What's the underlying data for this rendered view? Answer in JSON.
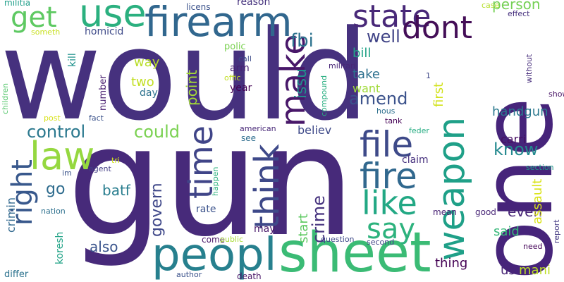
{
  "cloud": {
    "w01": {
      "text": "would",
      "color": "#46317e"
    },
    "w02": {
      "text": "gun",
      "color": "#472a7a"
    },
    "w03": {
      "text": "one",
      "color": "#46247a"
    },
    "w04": {
      "text": "sheet",
      "color": "#3bbb75"
    },
    "w05": {
      "text": "peopl",
      "color": "#27808e"
    },
    "w06": {
      "text": "firearm",
      "color": "#31678e"
    },
    "w07": {
      "text": "use",
      "color": "#2bb07f"
    },
    "w08": {
      "text": "state",
      "color": "#482878"
    },
    "w09": {
      "text": "dont",
      "color": "#440e57"
    },
    "w10": {
      "text": "get",
      "color": "#5ec962"
    },
    "w11": {
      "text": "law",
      "color": "#95d840"
    },
    "w12": {
      "text": "file",
      "color": "#3e4a89"
    },
    "w13": {
      "text": "fire",
      "color": "#31688e"
    },
    "w14": {
      "text": "weapon",
      "color": "#1fa088"
    },
    "w15": {
      "text": "like",
      "color": "#22a884"
    },
    "w16": {
      "text": "say",
      "color": "#2db27d"
    },
    "w17": {
      "text": "make",
      "color": "#481769"
    },
    "w18": {
      "text": "think",
      "color": "#3e4989"
    },
    "w19": {
      "text": "time",
      "color": "#404588"
    },
    "w20": {
      "text": "right",
      "color": "#38588c"
    },
    "w21": {
      "text": "control",
      "color": "#2a788e"
    },
    "w22": {
      "text": "could",
      "color": "#7ad151"
    },
    "w23": {
      "text": "well",
      "color": "#414487"
    },
    "w24": {
      "text": "fbi",
      "color": "#2c728e"
    },
    "w25": {
      "text": "amend",
      "color": "#3b528b"
    },
    "w26": {
      "text": "issu",
      "color": "#20928c"
    },
    "w27": {
      "text": "crime",
      "color": "#46337e"
    },
    "w28": {
      "text": "know",
      "color": "#23898e"
    },
    "w29": {
      "text": "person",
      "color": "#75d054"
    },
    "w30": {
      "text": "handgun",
      "color": "#2a788e"
    },
    "w31": {
      "text": "govern",
      "color": "#3f4889"
    },
    "w32": {
      "text": "point",
      "color": "#a5db36"
    },
    "w33": {
      "text": "go",
      "color": "#2f6c8e"
    },
    "w34": {
      "text": "batf",
      "color": "#287d8e"
    },
    "w35": {
      "text": "also",
      "color": "#3a548c"
    },
    "w36": {
      "text": "even",
      "color": "#482677"
    },
    "w37": {
      "text": "said",
      "color": "#35b779"
    },
    "w38": {
      "text": "thing",
      "color": "#440154"
    },
    "w39": {
      "text": "us",
      "color": "#482475"
    },
    "w40": {
      "text": "mani",
      "color": "#bddf26"
    },
    "w41": {
      "text": "assault",
      "color": "#dae319"
    },
    "w42": {
      "text": "start",
      "color": "#5ec962"
    },
    "w43": {
      "text": "bill",
      "color": "#20a386"
    },
    "w44": {
      "text": "way",
      "color": "#b8de29"
    },
    "w45": {
      "text": "two",
      "color": "#c2df23"
    },
    "w46": {
      "text": "take",
      "color": "#2d708e"
    },
    "w47": {
      "text": "want",
      "color": "#a0da39"
    },
    "w48": {
      "text": "first",
      "color": "#d2e21b"
    },
    "w49": {
      "text": "believ",
      "color": "#3e4989"
    },
    "w50": {
      "text": "carri",
      "color": "#471063"
    },
    "w51": {
      "text": "claim",
      "color": "#46307e"
    },
    "w52": {
      "text": "crimin",
      "color": "#31688e"
    },
    "w53": {
      "text": "koresh",
      "color": "#20a386"
    },
    "w54": {
      "text": "rate",
      "color": "#3b528b"
    },
    "w55": {
      "text": "may",
      "color": "#48186a"
    },
    "w56": {
      "text": "homicid",
      "color": "#3e4a89"
    },
    "w57": {
      "text": "kill",
      "color": "#20928c"
    },
    "w58": {
      "text": "arm",
      "color": "#482173"
    },
    "w59": {
      "text": "polic",
      "color": "#7ad151"
    },
    "w60": {
      "text": "year",
      "color": "#440154"
    },
    "w61": {
      "text": "day",
      "color": "#2c728e"
    },
    "w62": {
      "text": "number",
      "color": "#481f70"
    },
    "w63": {
      "text": "reason",
      "color": "#46337e"
    },
    "w64": {
      "text": "licens",
      "color": "#3b528b"
    },
    "w65": {
      "text": "militia",
      "color": "#1f9e89"
    },
    "w66": {
      "text": "someth",
      "color": "#c8e020"
    },
    "w67": {
      "text": "militari",
      "color": "#482677"
    },
    "w68": {
      "text": "compound",
      "color": "#28ae80"
    },
    "w69": {
      "text": "offic",
      "color": "#c2df23"
    },
    "w70": {
      "text": "call",
      "color": "#3e4a89"
    },
    "w71": {
      "text": "case",
      "color": "#b5de2b"
    },
    "w72": {
      "text": "effect",
      "color": "#46307e"
    },
    "w73": {
      "text": "without",
      "color": "#472d7b"
    },
    "w74": {
      "text": "1",
      "color": "#3f4788"
    },
    "w75": {
      "text": "show",
      "color": "#471365"
    },
    "w76": {
      "text": "fact",
      "color": "#3b528b"
    },
    "w77": {
      "text": "post",
      "color": "#d8e219"
    },
    "w78": {
      "text": "children",
      "color": "#52c569"
    },
    "w79": {
      "text": "american",
      "color": "#482878"
    },
    "w80": {
      "text": "hous",
      "color": "#2d708e"
    },
    "w81": {
      "text": "tank",
      "color": "#440154"
    },
    "w82": {
      "text": "feder",
      "color": "#25ac82"
    },
    "w83": {
      "text": "see",
      "color": "#2e6e8e"
    },
    "w84": {
      "text": "tri",
      "color": "#d2e21b"
    },
    "w85": {
      "text": "agent",
      "color": "#433e85"
    },
    "w86": {
      "text": "im",
      "color": "#3a538b"
    },
    "w87": {
      "text": "author",
      "color": "#3b528b"
    },
    "w88": {
      "text": "happen",
      "color": "#2db27d"
    },
    "w89": {
      "text": "nation",
      "color": "#2d708e"
    },
    "w90": {
      "text": "come",
      "color": "#481467"
    },
    "w91": {
      "text": "public",
      "color": "#a8db34"
    },
    "w92": {
      "text": "question",
      "color": "#3e4989"
    },
    "w93": {
      "text": "second",
      "color": "#414487"
    },
    "w94": {
      "text": "mean",
      "color": "#482173"
    },
    "w95": {
      "text": "good",
      "color": "#482677"
    },
    "w96": {
      "text": "section",
      "color": "#1f9a8a"
    },
    "w97": {
      "text": "need",
      "color": "#450559"
    },
    "w98": {
      "text": "report",
      "color": "#443983"
    },
    "w99": {
      "text": "death",
      "color": "#481467"
    },
    "w100": {
      "text": "differ",
      "color": "#2c728e"
    }
  }
}
